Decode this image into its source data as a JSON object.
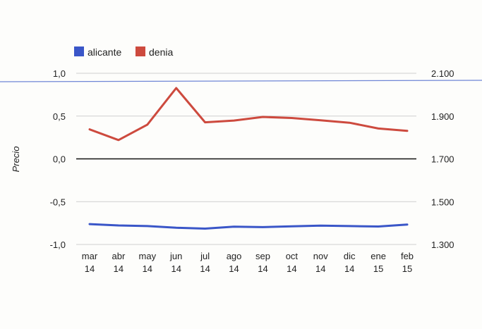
{
  "chart_data": {
    "type": "line",
    "title": "",
    "xlabel": "",
    "ylabel": "Precio",
    "categories": [
      [
        "mar",
        "14"
      ],
      [
        "abr",
        "14"
      ],
      [
        "may",
        "14"
      ],
      [
        "jun",
        "14"
      ],
      [
        "jul",
        "14"
      ],
      [
        "ago",
        "14"
      ],
      [
        "sep",
        "14"
      ],
      [
        "oct",
        "14"
      ],
      [
        "nov",
        "14"
      ],
      [
        "dic",
        "14"
      ],
      [
        "ene",
        "15"
      ],
      [
        "feb",
        "15"
      ]
    ],
    "left_axis": {
      "ylim": [
        -1.0,
        1.0
      ],
      "ticks": [
        1.0,
        0.5,
        0.0,
        -0.5,
        -1.0
      ],
      "tick_labels": [
        "1,0",
        "0,5",
        "0,0",
        "-0,5",
        "-1,0"
      ]
    },
    "right_axis": {
      "ylim": [
        1300,
        2100
      ],
      "ticks": [
        2100,
        1900,
        1700,
        1500,
        1300
      ],
      "tick_labels": [
        "2.100",
        "1.900",
        "1.700",
        "1.500",
        "1.300"
      ]
    },
    "grid": true,
    "legend_position": "top-left",
    "series": [
      {
        "name": "alicante",
        "color": "#3a56c8",
        "axis": "right",
        "values": [
          1395,
          1389,
          1386,
          1378,
          1374,
          1383,
          1381,
          1385,
          1388,
          1386,
          1384,
          1393
        ]
      },
      {
        "name": "denia",
        "color": "#cd4a3e",
        "axis": "right",
        "values": [
          1838,
          1788,
          1860,
          2031,
          1871,
          1879,
          1896,
          1891,
          1880,
          1869,
          1842,
          1831
        ]
      }
    ]
  }
}
